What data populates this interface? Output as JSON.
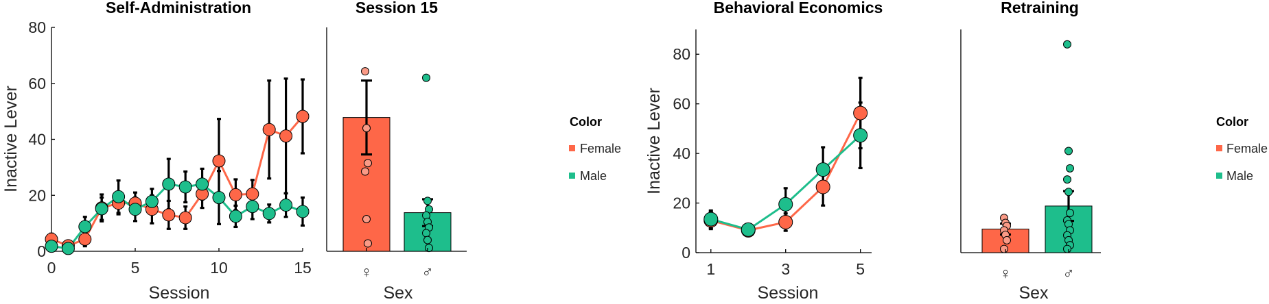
{
  "colors": {
    "female": "#fe6748",
    "female_light": "#fa9a86",
    "male": "#1ebe8c",
    "male_dark": "#11a277"
  },
  "legend": {
    "title": "Color",
    "female": "Female",
    "male": "Male"
  },
  "chart_data": [
    {
      "type": "line",
      "title": "Self-Administration",
      "xlabel": "Session",
      "ylabel": "Inactive Lever",
      "xlim": [
        0,
        15
      ],
      "ylim": [
        0,
        80
      ],
      "xticks": [
        "0",
        "5",
        "10",
        "15"
      ],
      "yticks": [
        "0",
        "20",
        "40",
        "60",
        "80"
      ],
      "x": [
        0,
        1,
        2,
        3,
        4,
        5,
        6,
        7,
        8,
        9,
        10,
        11,
        12,
        13,
        14,
        15
      ],
      "series": [
        {
          "name": "Female",
          "values": [
            4.3,
            2.0,
            4.3,
            15.5,
            17.2,
            17.2,
            15.0,
            13.0,
            12.0,
            20.5,
            32.3,
            20.2,
            20.5,
            43.5,
            41.2,
            48.2
          ],
          "err": [
            2,
            1.5,
            2.5,
            4.8,
            4,
            3.8,
            5,
            5,
            4,
            5,
            15,
            5.5,
            5,
            17.5,
            20.5,
            13.2
          ]
        },
        {
          "name": "Male",
          "values": [
            1.8,
            1.0,
            8.8,
            15.2,
            19.5,
            15.0,
            17.8,
            24.0,
            23.0,
            24.0,
            19.2,
            12.5,
            16.0,
            13.5,
            16.5,
            14.2
          ],
          "err": [
            1.5,
            0.8,
            3.5,
            4,
            5.8,
            4.2,
            4.5,
            9,
            5.5,
            5.5,
            9.5,
            3.8,
            4.5,
            3.2,
            4.2,
            5
          ]
        }
      ]
    },
    {
      "type": "bar",
      "title": "Session 15",
      "xlabel": "Sex",
      "ylim": [
        0,
        80
      ],
      "categories": [
        "♀",
        "♂"
      ],
      "values": [
        47.8,
        13.8
      ],
      "err": [
        13.2,
        4.8
      ],
      "points": [
        [
          64.3,
          44.0,
          31.5,
          28.5,
          11.5,
          2.8
        ],
        [
          62.0,
          18.0,
          15.0,
          12.8,
          10.5,
          8.5,
          6.5,
          4.0,
          1.2
        ]
      ]
    },
    {
      "type": "line",
      "title": "Behavioral Economics",
      "xlabel": "Session",
      "ylabel": "Inactive Lever",
      "xlim": [
        0.6,
        5.3
      ],
      "ylim": [
        0,
        90
      ],
      "xticks": [
        "1",
        "3",
        "5"
      ],
      "yticks": [
        "0",
        "20",
        "40",
        "60",
        "80"
      ],
      "x": [
        1,
        2,
        3,
        4,
        5
      ],
      "series": [
        {
          "name": "Female",
          "values": [
            13.0,
            9.0,
            12.3,
            26.5,
            56.3
          ],
          "err": [
            3.5,
            2,
            3.5,
            7.5,
            14.2
          ]
        },
        {
          "name": "Male",
          "values": [
            13.5,
            9.3,
            19.5,
            33.5,
            47.3
          ],
          "err": [
            3.5,
            2.2,
            6.5,
            9,
            13.2
          ]
        }
      ]
    },
    {
      "type": "bar",
      "title": "Retraining",
      "xlabel": "Sex",
      "ylim": [
        0,
        90
      ],
      "categories": [
        "♀",
        "♂"
      ],
      "values": [
        9.5,
        18.8
      ],
      "err": [
        2.2,
        6
      ],
      "points": [
        [
          14.0,
          12.0,
          10.8,
          9.0,
          7.2,
          5.0,
          1.5
        ],
        [
          84.0,
          41.0,
          34.0,
          29.5,
          24.5,
          16.0,
          13.0,
          11.5,
          9.0,
          7.0,
          5.0,
          3.0,
          1.5
        ]
      ]
    }
  ]
}
